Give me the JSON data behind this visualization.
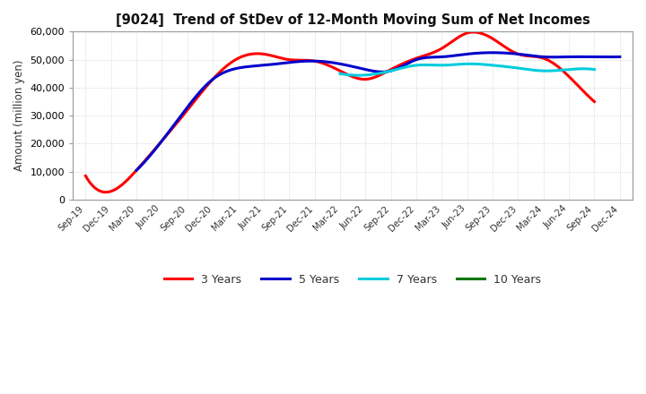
{
  "title": "[9024]  Trend of StDev of 12-Month Moving Sum of Net Incomes",
  "ylabel": "Amount (million yen)",
  "ylim": [
    0,
    60000
  ],
  "yticks": [
    0,
    10000,
    20000,
    30000,
    40000,
    50000,
    60000
  ],
  "background_color": "#ffffff",
  "grid_color": "#bbbbbb",
  "x_labels": [
    "Sep-19",
    "Dec-19",
    "Mar-20",
    "Jun-20",
    "Sep-20",
    "Dec-20",
    "Mar-21",
    "Jun-21",
    "Sep-21",
    "Dec-21",
    "Mar-22",
    "Jun-22",
    "Sep-22",
    "Dec-22",
    "Mar-23",
    "Jun-23",
    "Sep-23",
    "Dec-23",
    "Mar-24",
    "Jun-24",
    "Sep-24",
    "Dec-24"
  ],
  "series": {
    "3 Years": {
      "color": "#ff0000",
      "data_x": [
        0,
        1,
        2,
        3,
        4,
        5,
        6,
        7,
        8,
        9,
        10,
        11,
        12,
        13,
        14,
        15,
        16,
        17,
        18,
        19,
        20
      ],
      "data_y": [
        8500,
        3000,
        10500,
        21000,
        32000,
        43000,
        50500,
        52000,
        50000,
        49500,
        46000,
        43000,
        46500,
        50500,
        54000,
        59500,
        57500,
        52000,
        50500,
        44000,
        35000
      ]
    },
    "5 Years": {
      "color": "#0000cc",
      "data_x": [
        2,
        3,
        4,
        5,
        6,
        7,
        8,
        9,
        10,
        11,
        12,
        13,
        14,
        15,
        16,
        17,
        18,
        19,
        20,
        21
      ],
      "data_y": [
        10500,
        21000,
        33000,
        43000,
        47000,
        48000,
        49000,
        49500,
        48500,
        46500,
        46000,
        50000,
        51000,
        52000,
        52500,
        52000,
        51000,
        51000,
        51000,
        51000
      ]
    },
    "7 Years": {
      "color": "#00ccdd",
      "data_x": [
        10,
        11,
        12,
        13,
        14,
        15,
        16,
        17,
        18,
        19,
        20
      ],
      "data_y": [
        45000,
        44500,
        46000,
        48000,
        48000,
        48500,
        48000,
        47000,
        46000,
        46500,
        46500
      ]
    },
    "10 Years": {
      "color": "#007700",
      "data_x": [],
      "data_y": []
    }
  },
  "legend": {
    "labels": [
      "3 Years",
      "5 Years",
      "7 Years",
      "10 Years"
    ],
    "colors": [
      "#ff0000",
      "#0000cc",
      "#00ccdd",
      "#007700"
    ]
  }
}
